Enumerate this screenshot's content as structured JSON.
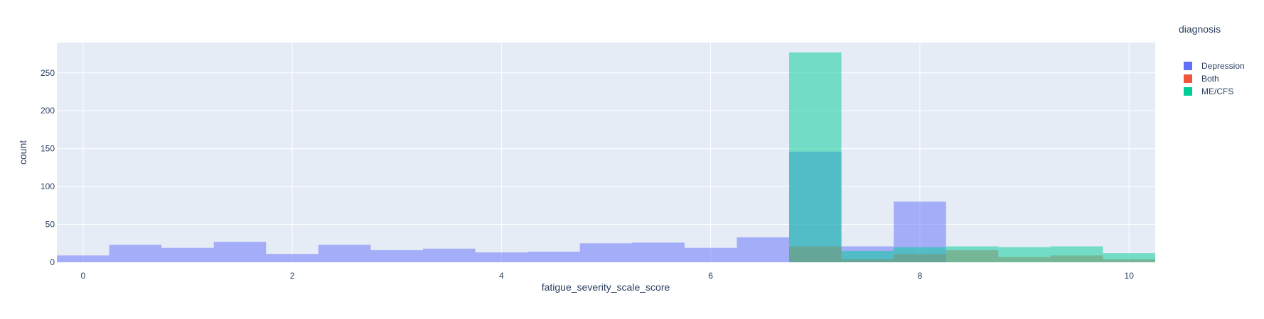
{
  "chart_data": {
    "type": "bar",
    "subtype": "overlaid-histogram",
    "xlabel": "fatigue_severity_scale_score",
    "ylabel": "count",
    "xlim": [
      -0.25,
      10.25
    ],
    "ylim": [
      0,
      290
    ],
    "x_ticks": [
      0,
      2,
      4,
      6,
      8,
      10
    ],
    "y_ticks": [
      0,
      50,
      100,
      150,
      200,
      250
    ],
    "bin_width": 0.5,
    "grid": true,
    "legend": {
      "title": "diagnosis",
      "position": "top-right-outside"
    },
    "colors": {
      "plot_bg": "#e5ecf6",
      "grid": "#ffffff",
      "text": "#2a3f5f"
    },
    "series": [
      {
        "name": "Depression",
        "color": "#636efa",
        "bins": [
          {
            "x0": -0.25,
            "x1": 0.25,
            "y": 9
          },
          {
            "x0": 0.25,
            "x1": 0.75,
            "y": 23
          },
          {
            "x0": 0.75,
            "x1": 1.25,
            "y": 19
          },
          {
            "x0": 1.25,
            "x1": 1.75,
            "y": 27
          },
          {
            "x0": 1.75,
            "x1": 2.25,
            "y": 11
          },
          {
            "x0": 2.25,
            "x1": 2.75,
            "y": 23
          },
          {
            "x0": 2.75,
            "x1": 3.25,
            "y": 16
          },
          {
            "x0": 3.25,
            "x1": 3.75,
            "y": 18
          },
          {
            "x0": 3.75,
            "x1": 4.25,
            "y": 13
          },
          {
            "x0": 4.25,
            "x1": 4.75,
            "y": 14
          },
          {
            "x0": 4.75,
            "x1": 5.25,
            "y": 25
          },
          {
            "x0": 5.25,
            "x1": 5.75,
            "y": 26
          },
          {
            "x0": 5.75,
            "x1": 6.25,
            "y": 19
          },
          {
            "x0": 6.25,
            "x1": 6.75,
            "y": 33
          },
          {
            "x0": 6.75,
            "x1": 7.25,
            "y": 146
          },
          {
            "x0": 7.25,
            "x1": 7.75,
            "y": 21
          },
          {
            "x0": 7.75,
            "x1": 8.25,
            "y": 80
          }
        ]
      },
      {
        "name": "Both",
        "color": "#ef553b",
        "bins": [
          {
            "x0": 6.75,
            "x1": 7.25,
            "y": 21
          },
          {
            "x0": 7.25,
            "x1": 7.75,
            "y": 4
          },
          {
            "x0": 7.75,
            "x1": 8.25,
            "y": 11
          },
          {
            "x0": 8.25,
            "x1": 8.75,
            "y": 16
          },
          {
            "x0": 8.75,
            "x1": 9.25,
            "y": 7
          },
          {
            "x0": 9.25,
            "x1": 9.75,
            "y": 9
          },
          {
            "x0": 9.75,
            "x1": 10.25,
            "y": 4
          }
        ]
      },
      {
        "name": "ME/CFS",
        "color": "#00cc96",
        "bins": [
          {
            "x0": 6.75,
            "x1": 7.25,
            "y": 277
          },
          {
            "x0": 7.25,
            "x1": 7.75,
            "y": 15
          },
          {
            "x0": 7.75,
            "x1": 8.25,
            "y": 20
          },
          {
            "x0": 8.25,
            "x1": 8.75,
            "y": 21
          },
          {
            "x0": 8.75,
            "x1": 9.25,
            "y": 20
          },
          {
            "x0": 9.25,
            "x1": 9.75,
            "y": 21
          },
          {
            "x0": 9.75,
            "x1": 10.25,
            "y": 12
          }
        ]
      }
    ]
  }
}
